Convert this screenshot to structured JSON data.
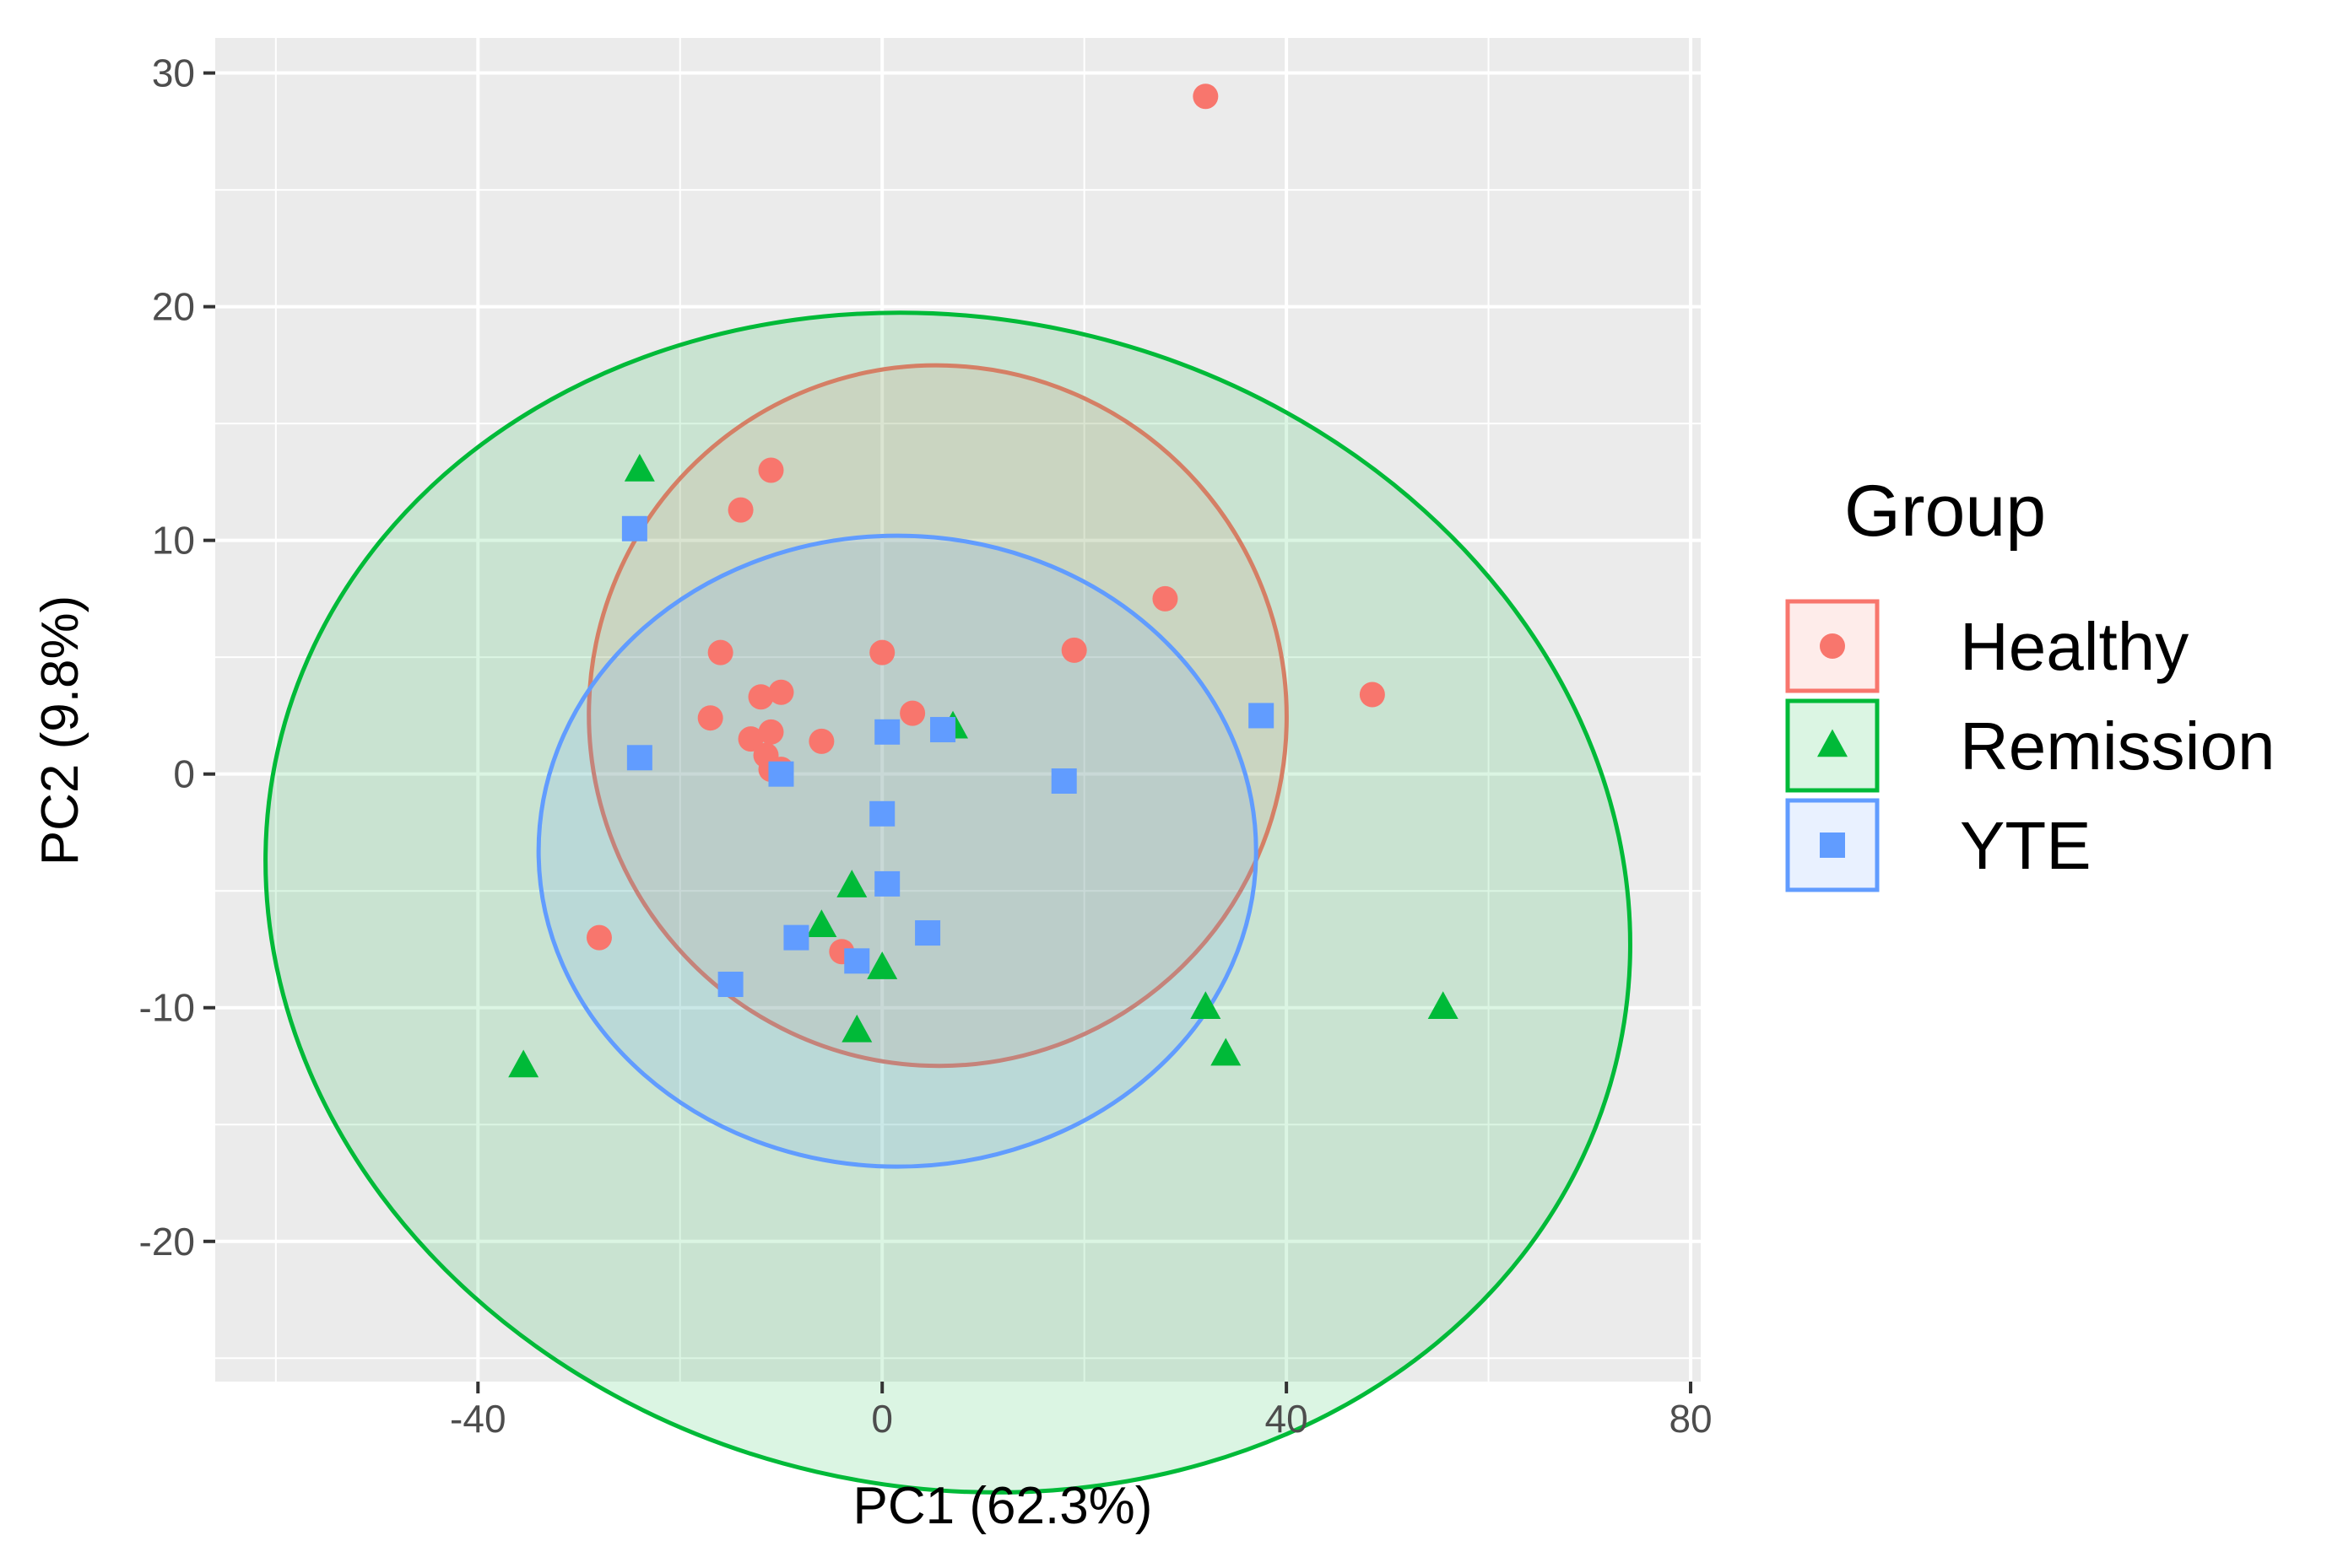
{
  "chart_data": {
    "type": "scatter",
    "title": "",
    "xlabel": "PC1 (62.3%)",
    "ylabel": "PC2 (9.8%)",
    "xlim": [
      -66,
      81
    ],
    "ylim": [
      -26,
      31.5
    ],
    "x_ticks": [
      -40,
      0,
      40,
      80
    ],
    "y_ticks": [
      -20,
      -10,
      0,
      10,
      20,
      30
    ],
    "x_tick_labels": [
      "-40",
      "0",
      "40",
      "80"
    ],
    "y_tick_labels": [
      "-20",
      "-10",
      "0",
      "10",
      "20",
      "30"
    ],
    "grid": true,
    "legend": {
      "title": "Group",
      "position": "right",
      "entries": [
        "Healthy",
        "Remission",
        "YTE"
      ]
    },
    "series": [
      {
        "name": "Healthy",
        "marker": "circle",
        "color": "#F8766D",
        "points": [
          [
            32,
            29
          ],
          [
            -11,
            13
          ],
          [
            -14,
            11.3
          ],
          [
            28,
            7.5
          ],
          [
            19,
            5.3
          ],
          [
            48.5,
            3.4
          ],
          [
            -16,
            5.2
          ],
          [
            0,
            5.2
          ],
          [
            -12,
            3.3
          ],
          [
            -10,
            3.5
          ],
          [
            3,
            2.6
          ],
          [
            -17,
            2.4
          ],
          [
            -13,
            1.5
          ],
          [
            -11,
            1.8
          ],
          [
            -6,
            1.4
          ],
          [
            -11.5,
            0.8
          ],
          [
            -11,
            0.2
          ],
          [
            -10,
            0.2
          ],
          [
            -28,
            -7
          ],
          [
            -4,
            -7.6
          ]
        ],
        "ellipse": {
          "cx": 5.5,
          "cy": 2.5,
          "rx": 34.5,
          "ry": 15,
          "angle_deg": 20
        }
      },
      {
        "name": "Remission",
        "marker": "triangle",
        "color": "#00BA38",
        "points": [
          [
            -24,
            13
          ],
          [
            7,
            2
          ],
          [
            -3,
            -4.8
          ],
          [
            -6,
            -6.5
          ],
          [
            0,
            -8.3
          ],
          [
            -2.5,
            -11
          ],
          [
            -35.5,
            -12.5
          ],
          [
            32,
            -10
          ],
          [
            34,
            -12
          ],
          [
            55.5,
            -10
          ]
        ],
        "ellipse": {
          "cx": 6.5,
          "cy": -5.5,
          "rx": 68,
          "ry": 25,
          "angle_deg": -13
        }
      },
      {
        "name": "YTE",
        "marker": "square",
        "color": "#619CFF",
        "points": [
          [
            -24.5,
            10.5
          ],
          [
            -24,
            0.7
          ],
          [
            -10,
            0
          ],
          [
            0.5,
            1.8
          ],
          [
            6,
            1.9
          ],
          [
            18,
            -0.3
          ],
          [
            37.5,
            2.5
          ],
          [
            0,
            -1.7
          ],
          [
            0.5,
            -4.7
          ],
          [
            -8.5,
            -7
          ],
          [
            4.5,
            -6.8
          ],
          [
            -2.5,
            -8
          ],
          [
            -15,
            -9
          ]
        ],
        "ellipse": {
          "cx": 1.5,
          "cy": -3.3,
          "rx": 35.5,
          "ry": 13.5,
          "angle_deg": 0
        }
      }
    ]
  }
}
